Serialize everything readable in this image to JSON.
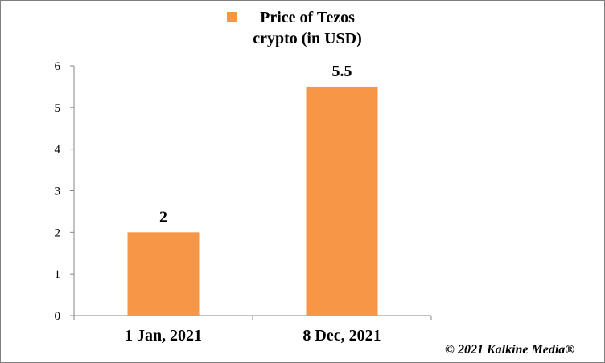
{
  "chart_data": {
    "type": "bar",
    "categories": [
      "1 Jan, 2021",
      "8 Dec, 2021"
    ],
    "series": [
      {
        "name": "Price of Tezos crypto (in USD)",
        "values": [
          2,
          5.5
        ],
        "color": "#f79646"
      }
    ],
    "data_labels": [
      "2",
      "5.5"
    ],
    "ylim": [
      0,
      6
    ],
    "yticks": [
      0,
      1,
      2,
      3,
      4,
      5,
      6
    ],
    "xlabel": "",
    "ylabel": "",
    "grid": false,
    "legend_position": "top"
  },
  "legend": {
    "label": "Price of Tezos crypto (in USD)",
    "swatch_color": "#f79646"
  },
  "watermark": "© 2021 Kalkine Media®"
}
